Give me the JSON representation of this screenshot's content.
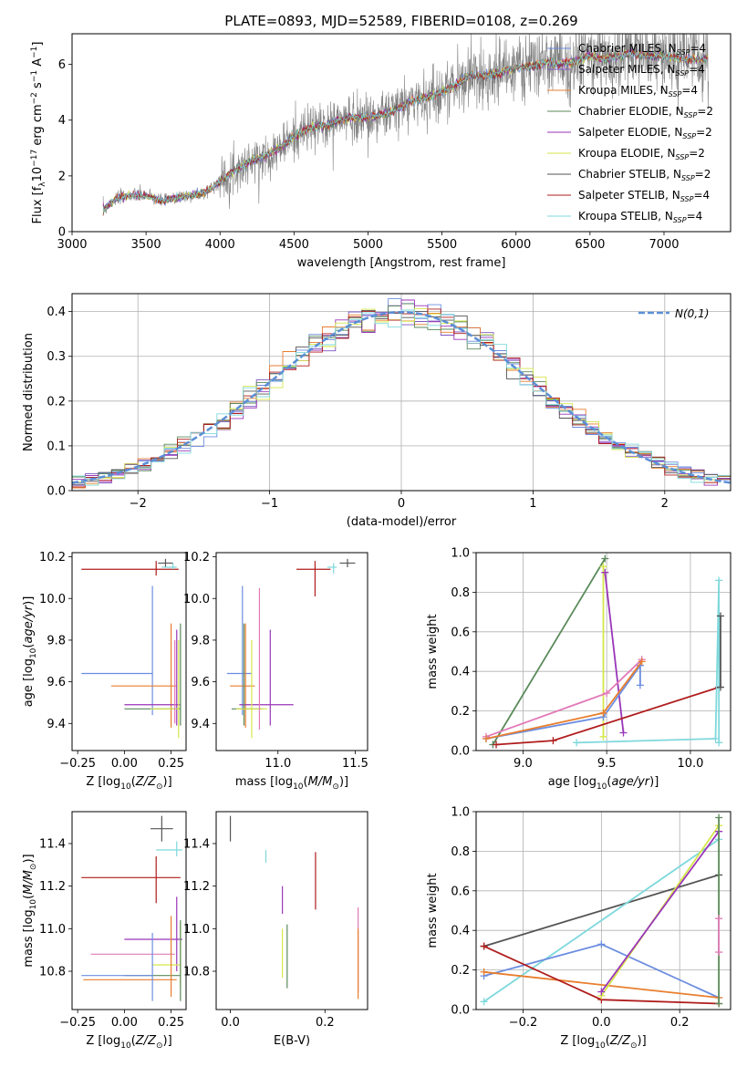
{
  "colors": {
    "chabrier_miles": "#6c8de0",
    "salpeter_miles": "#7e55c0",
    "kroupa_miles": "#e87e2e",
    "chabrier_elodie": "#5a8a5a",
    "salpeter_elodie": "#9a35b8",
    "kroupa_elodie": "#d6e64a",
    "chabrier_stelib": "#555555",
    "salpeter_stelib": "#b01c1c",
    "kroupa_stelib": "#7fd8dc",
    "pink": "#e27ab8",
    "data": "#808080",
    "normal": "#5b8fd6"
  },
  "chart_data": [
    {
      "id": "spectrum",
      "type": "line",
      "title": "PLATE=0893, MJD=52589, FIBERID=0108, z=0.269",
      "xlabel": "wavelength [Angstrom, rest frame]",
      "ylabel": "Flux [f_λ 10^-17 erg cm^-2 s^-1 A^-1]",
      "xlim": [
        3000,
        7450
      ],
      "ylim": [
        0,
        7.1
      ],
      "xticks": [
        3000,
        3500,
        4000,
        4500,
        5000,
        5500,
        6000,
        6500,
        7000
      ],
      "yticks": [
        0,
        2,
        4,
        6
      ],
      "x": [
        3210,
        3300,
        3400,
        3500,
        3600,
        3700,
        3800,
        3900,
        4000,
        4100,
        4200,
        4300,
        4400,
        4500,
        4600,
        4700,
        4800,
        4900,
        5000,
        5100,
        5200,
        5300,
        5400,
        5500,
        5600,
        5700,
        5800,
        5900,
        6000,
        6100,
        6200,
        6300,
        6400,
        6500,
        6600,
        6700,
        6800,
        6900,
        7000,
        7100,
        7200,
        7300
      ],
      "model": [
        0.8,
        1.2,
        1.3,
        1.3,
        1.1,
        1.2,
        1.3,
        1.4,
        1.8,
        2.2,
        2.5,
        2.7,
        3.0,
        3.4,
        3.7,
        3.8,
        4.0,
        4.1,
        4.1,
        4.2,
        4.4,
        4.7,
        4.8,
        5.0,
        5.3,
        5.6,
        5.6,
        5.7,
        5.9,
        5.9,
        6.1,
        6.0,
        6.1,
        6.3,
        6.2,
        6.3,
        6.4,
        6.3,
        6.3,
        6.2,
        6.2,
        6.2
      ],
      "series": [
        {
          "name": "Chabrier MILES, N_SSP=4",
          "color_key": "chabrier_miles"
        },
        {
          "name": "Salpeter MILES, N_SSP=4",
          "color_key": "salpeter_miles"
        },
        {
          "name": "Kroupa MILES, N_SSP=4",
          "color_key": "kroupa_miles"
        },
        {
          "name": "Chabrier ELODIE, N_SSP=2",
          "color_key": "chabrier_elodie"
        },
        {
          "name": "Salpeter ELODIE, N_SSP=2",
          "color_key": "salpeter_elodie"
        },
        {
          "name": "Kroupa ELODIE, N_SSP=2",
          "color_key": "kroupa_elodie"
        },
        {
          "name": "Chabrier STELIB, N_SSP=2",
          "color_key": "chabrier_stelib"
        },
        {
          "name": "Salpeter STELIB, N_SSP=4",
          "color_key": "salpeter_stelib"
        },
        {
          "name": "Kroupa STELIB, N_SSP=4",
          "color_key": "kroupa_stelib"
        }
      ],
      "legend": "right"
    },
    {
      "id": "residuals",
      "type": "line",
      "xlabel": "(data-model)/error",
      "ylabel": "Normed distribution",
      "xlim": [
        -2.5,
        2.5
      ],
      "ylim": [
        0,
        0.44
      ],
      "xticks": [
        -2,
        -1,
        0,
        1,
        2
      ],
      "yticks": [
        0.0,
        0.1,
        0.2,
        0.3,
        0.4
      ],
      "legend_label": "N(0,1)",
      "legend": "top-right",
      "grid": true
    },
    {
      "id": "age_vs_Z",
      "type": "scatter",
      "xlabel": "Z [log10(Z/Z⊙)]",
      "ylabel": "age [log10(age/yr)]",
      "xlim": [
        -0.28,
        0.33
      ],
      "ylim": [
        9.27,
        10.22
      ],
      "xticks": [
        -0.25,
        0.0,
        0.25
      ],
      "yticks": [
        9.4,
        9.6,
        9.8,
        10.0,
        10.2
      ],
      "points": [
        {
          "c": "chabrier_miles",
          "x": 0.15,
          "y": 9.64,
          "xe": [
            0.38,
            0.0
          ],
          "ye": [
            0.2,
            0.42
          ]
        },
        {
          "c": "kroupa_miles",
          "x": 0.25,
          "y": 9.58,
          "xe": [
            0.32,
            0.03
          ],
          "ye": [
            0.2,
            0.3
          ]
        },
        {
          "c": "salpeter_stelib",
          "x": 0.17,
          "y": 10.14,
          "xe": [
            0.4,
            0.12
          ],
          "ye": [
            0.03,
            0.04
          ]
        },
        {
          "c": "chabrier_stelib",
          "x": 0.22,
          "y": 10.17,
          "xe": [
            0.04,
            0.04
          ],
          "ye": [
            0.02,
            0.02
          ]
        },
        {
          "c": "kroupa_stelib",
          "x": 0.26,
          "y": 10.15,
          "xe": [
            0.06,
            0.02
          ],
          "ye": [
            0.01,
            0.02
          ]
        },
        {
          "c": "salpeter_elodie",
          "x": 0.28,
          "y": 9.49,
          "xe": [
            0.28,
            0.02
          ],
          "ye": [
            0.1,
            0.36
          ]
        },
        {
          "c": "chabrier_elodie",
          "x": 0.3,
          "y": 9.47,
          "xe": [
            0.3,
            0.0
          ],
          "ye": [
            0.08,
            0.41
          ]
        },
        {
          "c": "kroupa_elodie",
          "x": 0.29,
          "y": 9.47,
          "xe": [
            0.15,
            0.0
          ],
          "ye": [
            0.14,
            0.33
          ]
        },
        {
          "c": "pink",
          "x": 0.27,
          "y": 9.6,
          "xe": [
            0.0,
            0.0
          ],
          "ye": [
            0.2,
            0.2
          ]
        }
      ]
    },
    {
      "id": "age_vs_mass",
      "type": "scatter",
      "xlabel": "mass [log10(M/M⊙)]",
      "ylabel": "",
      "xlim": [
        10.6,
        11.58
      ],
      "ylim": [
        9.27,
        10.22
      ],
      "xticks": [
        11.0,
        11.5
      ],
      "yticks": [
        9.4,
        9.6,
        9.8,
        10.0,
        10.2
      ],
      "points": [
        {
          "c": "chabrier_miles",
          "x": 10.77,
          "y": 9.64,
          "xe": [
            0.1,
            0.06
          ],
          "ye": [
            0.2,
            0.42
          ]
        },
        {
          "c": "kroupa_miles",
          "x": 10.79,
          "y": 9.58,
          "xe": [
            0.1,
            0.06
          ],
          "ye": [
            0.2,
            0.3
          ]
        },
        {
          "c": "salpeter_stelib",
          "x": 11.24,
          "y": 10.14,
          "xe": [
            0.12,
            0.1
          ],
          "ye": [
            0.13,
            0.04
          ]
        },
        {
          "c": "chabrier_stelib",
          "x": 11.45,
          "y": 10.17,
          "xe": [
            0.05,
            0.05
          ],
          "ye": [
            0.02,
            0.02
          ]
        },
        {
          "c": "kroupa_stelib",
          "x": 11.36,
          "y": 10.15,
          "xe": [
            0.04,
            0.02
          ],
          "ye": [
            0.03,
            0.02
          ]
        },
        {
          "c": "salpeter_elodie",
          "x": 10.95,
          "y": 9.49,
          "xe": [
            0.2,
            0.15
          ],
          "ye": [
            0.1,
            0.36
          ]
        },
        {
          "c": "chabrier_elodie",
          "x": 10.78,
          "y": 9.47,
          "xe": [
            0.08,
            0.12
          ],
          "ye": [
            0.08,
            0.41
          ]
        },
        {
          "c": "kroupa_elodie",
          "x": 10.83,
          "y": 9.47,
          "xe": [
            0.1,
            0.1
          ],
          "ye": [
            0.14,
            0.33
          ]
        },
        {
          "c": "pink",
          "x": 10.88,
          "y": 9.57,
          "xe": [
            0.0,
            0.0
          ],
          "ye": [
            0.2,
            0.48
          ]
        }
      ]
    },
    {
      "id": "weight_vs_age",
      "type": "line",
      "xlabel": "age [log10(age/yr)]",
      "ylabel": "mass weight",
      "xlim": [
        8.72,
        10.24
      ],
      "ylim": [
        0,
        1.0
      ],
      "xticks": [
        9.0,
        9.5,
        10.0
      ],
      "yticks": [
        0.0,
        0.2,
        0.4,
        0.6,
        0.8,
        1.0
      ],
      "grid": true,
      "series": [
        {
          "c": "chabrier_elodie",
          "x": [
            8.82,
            9.49
          ],
          "y": [
            0.03,
            0.97
          ]
        },
        {
          "c": "kroupa_elodie",
          "x": [
            9.48,
            9.48
          ],
          "y": [
            0.07,
            0.93
          ]
        },
        {
          "c": "salpeter_elodie",
          "x": [
            9.49,
            9.6
          ],
          "y": [
            0.9,
            0.09
          ]
        },
        {
          "c": "pink",
          "x": [
            8.78,
            9.5,
            9.71
          ],
          "y": [
            0.07,
            0.29,
            0.46
          ]
        },
        {
          "c": "chabrier_miles",
          "x": [
            8.78,
            9.48,
            9.7,
            9.7
          ],
          "y": [
            0.06,
            0.17,
            0.43,
            0.33
          ]
        },
        {
          "c": "kroupa_miles",
          "x": [
            8.78,
            9.48,
            9.71
          ],
          "y": [
            0.06,
            0.19,
            0.45
          ]
        },
        {
          "c": "salpeter_stelib",
          "x": [
            8.84,
            9.18,
            10.17
          ],
          "y": [
            0.03,
            0.05,
            0.32
          ]
        },
        {
          "c": "kroupa_stelib",
          "x": [
            9.32,
            10.15,
            10.17,
            10.17
          ],
          "y": [
            0.04,
            0.06,
            0.86,
            0.04
          ]
        },
        {
          "c": "chabrier_stelib",
          "x": [
            10.18,
            10.18
          ],
          "y": [
            0.68,
            0.32
          ]
        }
      ]
    },
    {
      "id": "mass_vs_Z",
      "type": "scatter",
      "xlabel": "Z [log10(Z/Z⊙)]",
      "ylabel": "mass [log10(M/M⊙)]",
      "xlim": [
        -0.28,
        0.33
      ],
      "ylim": [
        10.62,
        11.55
      ],
      "xticks": [
        -0.25,
        0.0,
        0.25
      ],
      "yticks": [
        10.8,
        11.0,
        11.2,
        11.4
      ],
      "points": [
        {
          "c": "chabrier_stelib",
          "x": 0.2,
          "y": 11.47,
          "xe": [
            0.06,
            0.06
          ],
          "ye": [
            0.06,
            0.06
          ]
        },
        {
          "c": "kroupa_stelib",
          "x": 0.28,
          "y": 11.37,
          "xe": [
            0.11,
            0.03
          ],
          "ye": [
            0.03,
            0.04
          ]
        },
        {
          "c": "salpeter_stelib",
          "x": 0.17,
          "y": 11.24,
          "xe": [
            0.4,
            0.13
          ],
          "ye": [
            0.12,
            0.1
          ]
        },
        {
          "c": "salpeter_elodie",
          "x": 0.28,
          "y": 10.95,
          "xe": [
            0.28,
            0.03
          ],
          "ye": [
            0.15,
            0.2
          ]
        },
        {
          "c": "pink",
          "x": 0.27,
          "y": 10.88,
          "xe": [
            0.45,
            0.0
          ],
          "ye": [
            0.0,
            0.0
          ]
        },
        {
          "c": "kroupa_elodie",
          "x": 0.3,
          "y": 10.83,
          "xe": [
            0.15,
            0.0
          ],
          "ye": [
            0.1,
            0.2
          ]
        },
        {
          "c": "chabrier_elodie",
          "x": 0.3,
          "y": 10.78,
          "xe": [
            0.3,
            0.0
          ],
          "ye": [
            0.12,
            0.26
          ]
        },
        {
          "c": "kroupa_miles",
          "x": 0.25,
          "y": 10.76,
          "xe": [
            0.47,
            0.03
          ],
          "ye": [
            0.08,
            0.3
          ]
        },
        {
          "c": "chabrier_miles",
          "x": 0.15,
          "y": 10.78,
          "xe": [
            0.38,
            0.0
          ],
          "ye": [
            0.12,
            0.2
          ]
        }
      ]
    },
    {
      "id": "mass_vs_EBV",
      "type": "scatter",
      "xlabel": "E(B-V)",
      "ylabel": "",
      "xlim": [
        -0.03,
        0.29
      ],
      "ylim": [
        10.62,
        11.55
      ],
      "xticks": [
        0.0,
        0.2
      ],
      "yticks": [
        10.8,
        11.0,
        11.2,
        11.4
      ],
      "points": [
        {
          "c": "chabrier_stelib",
          "x": 0.0,
          "y": 11.47,
          "xe": [
            0,
            0
          ],
          "ye": [
            0.06,
            0.06
          ]
        },
        {
          "c": "kroupa_stelib",
          "x": 0.075,
          "y": 11.34,
          "xe": [
            0,
            0
          ],
          "ye": [
            0.03,
            0.03
          ]
        },
        {
          "c": "salpeter_elodie",
          "x": 0.11,
          "y": 11.07,
          "xe": [
            0,
            0
          ],
          "ye": [
            0.0,
            0.13
          ]
        },
        {
          "c": "kroupa_elodie",
          "x": 0.11,
          "y": 10.92,
          "xe": [
            0,
            0
          ],
          "ye": [
            0.15,
            0.08
          ]
        },
        {
          "c": "chabrier_elodie",
          "x": 0.12,
          "y": 10.92,
          "xe": [
            0,
            0
          ],
          "ye": [
            0.2,
            0.1
          ]
        },
        {
          "c": "salpeter_stelib",
          "x": 0.18,
          "y": 11.22,
          "xe": [
            0,
            0
          ],
          "ye": [
            0.13,
            0.14
          ]
        },
        {
          "c": "pink",
          "x": 0.27,
          "y": 10.9,
          "xe": [
            0,
            0
          ],
          "ye": [
            0.2,
            0.2
          ]
        },
        {
          "c": "kroupa_miles",
          "x": 0.27,
          "y": 10.85,
          "xe": [
            0,
            0
          ],
          "ye": [
            0.18,
            0.15
          ]
        }
      ]
    },
    {
      "id": "weight_vs_Z",
      "type": "line",
      "xlabel": "Z [log10(Z/Z⊙)]",
      "ylabel": "mass weight",
      "xlim": [
        -0.32,
        0.33
      ],
      "ylim": [
        0,
        1.0
      ],
      "xticks": [
        -0.2,
        0.0,
        0.2
      ],
      "yticks": [
        0.0,
        0.2,
        0.4,
        0.6,
        0.8,
        1.0
      ],
      "grid": true,
      "series": [
        {
          "c": "chabrier_stelib",
          "x": [
            -0.3,
            0.3
          ],
          "y": [
            0.32,
            0.68
          ]
        },
        {
          "c": "kroupa_stelib",
          "x": [
            -0.3,
            0.3
          ],
          "y": [
            0.04,
            0.86
          ]
        },
        {
          "c": "chabrier_miles",
          "x": [
            -0.3,
            0.0,
            0.3
          ],
          "y": [
            0.17,
            0.33,
            0.06
          ]
        },
        {
          "c": "kroupa_miles",
          "x": [
            -0.3,
            0.3
          ],
          "y": [
            0.19,
            0.06
          ]
        },
        {
          "c": "salpeter_stelib",
          "x": [
            -0.3,
            0.0,
            0.3
          ],
          "y": [
            0.32,
            0.05,
            0.03
          ]
        },
        {
          "c": "kroupa_elodie",
          "x": [
            0.0,
            0.3
          ],
          "y": [
            0.07,
            0.93
          ]
        },
        {
          "c": "salpeter_elodie",
          "x": [
            0.0,
            0.3
          ],
          "y": [
            0.09,
            0.9
          ]
        },
        {
          "c": "chabrier_elodie",
          "x": [
            0.3,
            0.3
          ],
          "y": [
            0.03,
            0.97
          ]
        },
        {
          "c": "pink",
          "x": [
            0.3,
            0.3
          ],
          "y": [
            0.29,
            0.46
          ]
        }
      ]
    }
  ]
}
